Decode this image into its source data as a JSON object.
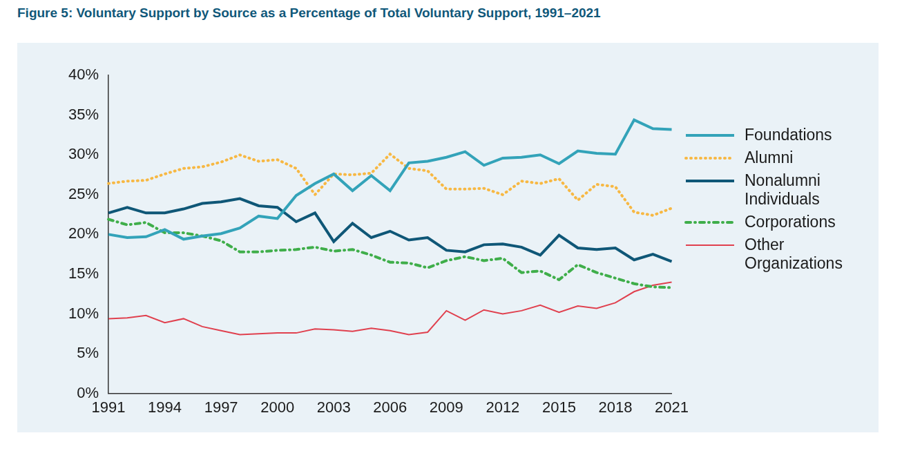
{
  "chart_data": {
    "type": "line",
    "title": "Figure 5: Voluntary Support by Source as a Percentage of Total Voluntary Support, 1991–2021",
    "categories": [
      "1991",
      null,
      null,
      "1994",
      null,
      null,
      "1997",
      null,
      null,
      "2000",
      null,
      null,
      "2003",
      null,
      null,
      "2006",
      null,
      null,
      "2009",
      null,
      null,
      "2012",
      null,
      null,
      "2015",
      null,
      null,
      "2018",
      null,
      null,
      "2021"
    ],
    "series": [
      {
        "name": "Foundations",
        "color": "#33a3b9",
        "line_style": "solid",
        "values": [
          20.0,
          19.6,
          19.7,
          20.6,
          19.4,
          19.8,
          20.1,
          20.8,
          22.3,
          22.0,
          24.9,
          26.4,
          27.6,
          25.5,
          27.4,
          25.5,
          29.0,
          29.2,
          29.7,
          30.4,
          28.7,
          29.6,
          29.7,
          30.0,
          28.9,
          30.5,
          30.2,
          30.1,
          34.4,
          33.3,
          33.2
        ]
      },
      {
        "name": "Alumni",
        "color": "#f7b843",
        "line_style": "dotted",
        "values": [
          26.4,
          26.7,
          26.8,
          27.6,
          28.3,
          28.5,
          29.1,
          30.0,
          29.2,
          29.4,
          28.3,
          25.0,
          27.6,
          27.5,
          27.7,
          30.1,
          28.3,
          28.0,
          25.7,
          25.7,
          25.8,
          25.0,
          26.7,
          26.4,
          27.0,
          24.3,
          26.3,
          26.0,
          22.8,
          22.4,
          23.3
        ]
      },
      {
        "name": "Nonalumni Individuals",
        "color": "#0f5777",
        "line_style": "solid",
        "values": [
          22.7,
          23.4,
          22.7,
          22.7,
          23.2,
          23.9,
          24.1,
          24.5,
          23.6,
          23.4,
          21.6,
          22.7,
          19.1,
          21.4,
          19.6,
          20.4,
          19.3,
          19.6,
          18.0,
          17.8,
          18.7,
          18.8,
          18.4,
          17.4,
          19.9,
          18.3,
          18.1,
          18.3,
          16.8,
          17.5,
          16.6
        ]
      },
      {
        "name": "Corporations",
        "color": "#3fae4a",
        "line_style": "dashdot",
        "values": [
          21.9,
          21.2,
          21.5,
          20.2,
          20.2,
          19.8,
          19.2,
          17.8,
          17.8,
          18.0,
          18.1,
          18.4,
          17.9,
          18.1,
          17.4,
          16.5,
          16.4,
          15.8,
          16.7,
          17.2,
          16.7,
          17.0,
          15.2,
          15.4,
          14.3,
          16.2,
          15.2,
          14.5,
          13.8,
          13.4,
          13.3
        ]
      },
      {
        "name": "Other Organizations",
        "color": "#e0404e",
        "line_style": "thin",
        "values": [
          9.4,
          9.5,
          9.8,
          8.9,
          9.4,
          8.4,
          7.9,
          7.4,
          7.5,
          7.6,
          7.6,
          8.1,
          8.0,
          7.8,
          8.2,
          7.9,
          7.4,
          7.7,
          10.4,
          9.2,
          10.5,
          10.0,
          10.4,
          11.1,
          10.2,
          11.0,
          10.7,
          11.4,
          12.8,
          13.6,
          14.0
        ]
      }
    ],
    "ylim": [
      0,
      40
    ],
    "yticks": [
      {
        "value": 0,
        "label": "0%"
      },
      {
        "value": 5,
        "label": "5%"
      },
      {
        "value": 10,
        "label": "10%"
      },
      {
        "value": 15,
        "label": "15%"
      },
      {
        "value": 20,
        "label": "20%"
      },
      {
        "value": 25,
        "label": "25%"
      },
      {
        "value": 30,
        "label": "30%"
      },
      {
        "value": 35,
        "label": "35%"
      },
      {
        "value": 40,
        "label": "40%"
      }
    ],
    "grid": false,
    "legend": "right"
  }
}
